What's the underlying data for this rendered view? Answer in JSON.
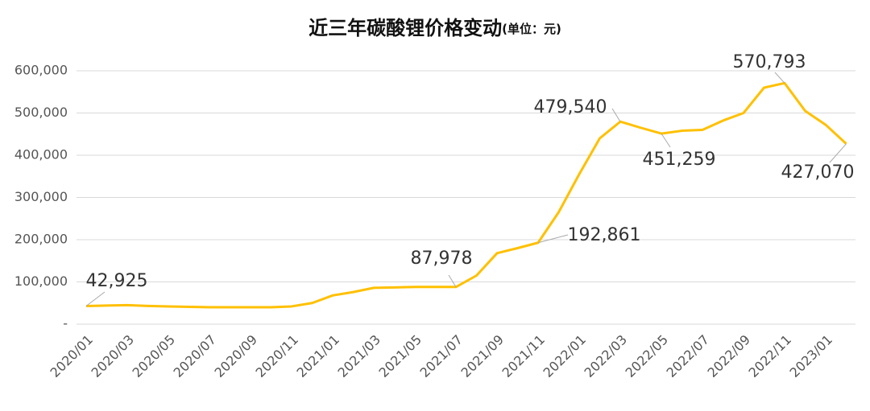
{
  "chart_data": {
    "type": "line",
    "title": "近三年碳酸锂价格变动",
    "unit": "(单位：元)",
    "categories": [
      "2020/01",
      null,
      "2020/03",
      null,
      "2020/05",
      null,
      "2020/07",
      null,
      "2020/09",
      null,
      "2020/11",
      null,
      "2021/01",
      null,
      "2021/03",
      null,
      "2021/05",
      null,
      "2021/07",
      null,
      "2021/09",
      null,
      "2021/11",
      null,
      "2022/01",
      null,
      "2022/03",
      null,
      "2022/05",
      null,
      "2022/07",
      null,
      "2022/09",
      null,
      "2022/11",
      null,
      "2023/01",
      null
    ],
    "series": [
      {
        "name": "碳酸锂价格",
        "color": "#ffc000",
        "values": [
          42925,
          44000,
          45000,
          43000,
          42000,
          41000,
          40000,
          40000,
          40000,
          40000,
          42000,
          50000,
          68000,
          76000,
          86000,
          87000,
          88000,
          88000,
          87978,
          115000,
          168000,
          180000,
          192861,
          265000,
          355000,
          440000,
          479540,
          465000,
          451259,
          458000,
          460000,
          482000,
          500000,
          560000,
          570793,
          505000,
          472000,
          427070
        ],
        "value_labels": [
          "42,925",
          null,
          null,
          null,
          null,
          null,
          null,
          null,
          null,
          null,
          null,
          null,
          null,
          null,
          null,
          null,
          null,
          null,
          "87,978",
          null,
          null,
          null,
          "192,861",
          null,
          null,
          null,
          "479,540",
          null,
          "451,259",
          null,
          null,
          null,
          null,
          null,
          "570,793",
          null,
          null,
          "427,070"
        ]
      }
    ],
    "ylim": [
      0,
      600000
    ],
    "yticks": [
      {
        "value": 0,
        "label": "-"
      },
      {
        "value": 100000,
        "label": "100,000"
      },
      {
        "value": 200000,
        "label": "200,000"
      },
      {
        "value": 300000,
        "label": "300,000"
      },
      {
        "value": 400000,
        "label": "400,000"
      },
      {
        "value": 500000,
        "label": "500,000"
      },
      {
        "value": 600000,
        "label": "600,000"
      }
    ],
    "grid": true
  }
}
